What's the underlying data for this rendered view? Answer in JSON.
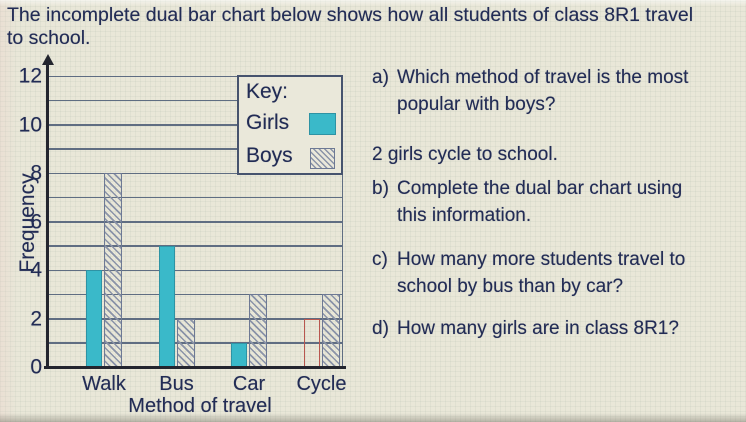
{
  "title": "The incomplete dual bar chart below shows how all students of class 8R1 travel\nto school.",
  "chart_data": {
    "type": "bar",
    "title": "",
    "categories": [
      "Walk",
      "Bus",
      "Car",
      "Cycle"
    ],
    "series": [
      {
        "name": "Girls",
        "style": "solid-teal",
        "values": [
          4,
          5,
          1,
          null
        ]
      },
      {
        "name": "Boys",
        "style": "hatched",
        "values": [
          8,
          2,
          3,
          3
        ]
      }
    ],
    "annotation_bar": {
      "series": "Girls",
      "category": "Cycle",
      "value": 2,
      "style": "thin-red-outline"
    },
    "xlabel": "Method of travel",
    "ylabel": "Frequency",
    "ylim": [
      0,
      12
    ],
    "yticks": [
      0,
      2,
      4,
      6,
      8,
      10,
      12
    ],
    "grid_step": 1,
    "grid": "on",
    "legend": {
      "title": "Key:",
      "position": "top-right",
      "entries": [
        {
          "label": "Girls",
          "swatch": "solid-teal"
        },
        {
          "label": "Boys",
          "swatch": "hatched"
        }
      ]
    }
  },
  "questions": {
    "a": {
      "label": "a)",
      "text": "Which method of travel is the most\npopular with boys?"
    },
    "note": "2 girls cycle to school.",
    "b": {
      "label": "b)",
      "text": "Complete the dual bar chart using\nthis information."
    },
    "c": {
      "label": "c)",
      "text": "How many more students travel to\nschool by bus than by car?"
    },
    "d": {
      "label": "d)",
      "text": "How many girls are in class 8R1?"
    }
  },
  "colors": {
    "background": "#e9e7d8",
    "text": "#222c55",
    "girls_bar": "#3ab9c9",
    "boys_hatch_line": "#8a93a8",
    "gridline": "#5f6d82",
    "axis": "#23252e",
    "answer_outline_red": "#b8574f"
  }
}
